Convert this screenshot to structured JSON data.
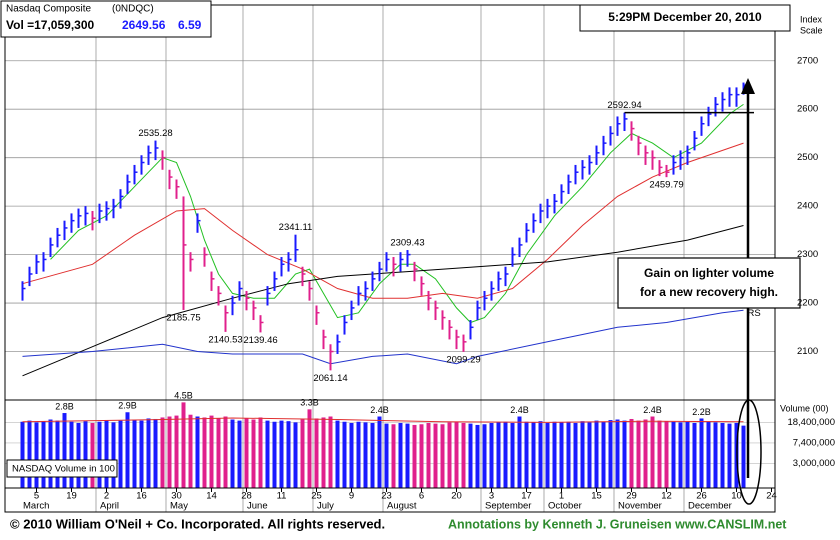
{
  "chart_data": {
    "type": "ohlc",
    "title": "Nasdaq Composite",
    "symbol": "(0NDQC)",
    "volume_text": "Vol =17,059,300",
    "change": 6.59,
    "timestamp": "5:29PM December 20, 2010",
    "scale_label": [
      "Index",
      "Scale"
    ],
    "volume_axis_label": "Volume (00)",
    "volume_panel_label": "NASDAQ Volume in 100",
    "annotation": [
      "Gain on lighter volume",
      "for a new recovery high."
    ],
    "copyright": "© 2010 William O'Neil + Co. Incorporated. All rights reserved.",
    "credit": "Annotations by Kenneth J. Gruneisen www.CANSLIM.net",
    "up_color": "#1a1aff",
    "down_color": "#e0208c",
    "grid": true,
    "xlim": [
      -2.5,
      107.5
    ],
    "xticks": [
      {
        "value": 2,
        "label": "5"
      },
      {
        "value": 7,
        "label": "19"
      },
      {
        "value": 12,
        "label": "2"
      },
      {
        "value": 17,
        "label": "16"
      },
      {
        "value": 22,
        "label": "30"
      },
      {
        "value": 27,
        "label": "14"
      },
      {
        "value": 32,
        "label": "28"
      },
      {
        "value": 37,
        "label": "11"
      },
      {
        "value": 42,
        "label": "25"
      },
      {
        "value": 47,
        "label": "9"
      },
      {
        "value": 52,
        "label": "23"
      },
      {
        "value": 57,
        "label": "6"
      },
      {
        "value": 62,
        "label": "20"
      },
      {
        "value": 67,
        "label": "3"
      },
      {
        "value": 72,
        "label": "17"
      },
      {
        "value": 77,
        "label": "1"
      },
      {
        "value": 82,
        "label": "15"
      },
      {
        "value": 87,
        "label": "29"
      },
      {
        "value": 92,
        "label": "12"
      },
      {
        "value": 97,
        "label": "26"
      },
      {
        "value": 102,
        "label": "10"
      },
      {
        "value": 107,
        "label": "24"
      }
    ],
    "months": [
      {
        "label": "March",
        "start": 0
      },
      {
        "label": "April",
        "start": 11
      },
      {
        "label": "May",
        "start": 21
      },
      {
        "label": "June",
        "start": 32
      },
      {
        "label": "July",
        "start": 42
      },
      {
        "label": "August",
        "start": 52
      },
      {
        "label": "September",
        "start": 66
      },
      {
        "label": "October",
        "start": 75
      },
      {
        "label": "November",
        "start": 85
      },
      {
        "label": "December",
        "start": 95
      }
    ],
    "ylim": [
      2000,
      2815
    ],
    "yticks": [
      2100,
      2200,
      2300,
      2400,
      2500,
      2600,
      2700
    ],
    "close": [
      2230,
      2260,
      2285,
      2290,
      2320,
      2340,
      2355,
      2370,
      2380,
      2385,
      2375,
      2390,
      2395,
      2400,
      2420,
      2450,
      2470,
      2490,
      2510,
      2520,
      2500,
      2460,
      2440,
      2320,
      2290,
      2370,
      2300,
      2250,
      2220,
      2180,
      2200,
      2230,
      2210,
      2190,
      2160,
      2220,
      2250,
      2280,
      2290,
      2310,
      2260,
      2230,
      2180,
      2130,
      2100,
      2120,
      2160,
      2190,
      2220,
      2230,
      2250,
      2270,
      2290,
      2280,
      2290,
      2300,
      2270,
      2240,
      2210,
      2190,
      2170,
      2150,
      2130,
      2120,
      2150,
      2190,
      2210,
      2230,
      2250,
      2260,
      2300,
      2320,
      2350,
      2370,
      2390,
      2400,
      2410,
      2430,
      2450,
      2470,
      2480,
      2490,
      2510,
      2530,
      2550,
      2570,
      2580,
      2560,
      2530,
      2510,
      2500,
      2480,
      2470,
      2490,
      2500,
      2510,
      2540,
      2570,
      2590,
      2610,
      2620,
      2630,
      2630,
      2649.56
    ],
    "high": [
      2245,
      2275,
      2300,
      2305,
      2335,
      2355,
      2370,
      2385,
      2395,
      2400,
      2390,
      2405,
      2410,
      2415,
      2435,
      2465,
      2485,
      2505,
      2525,
      2535.28,
      2515,
      2475,
      2455,
      2420,
      2305,
      2385,
      2315,
      2265,
      2235,
      2195,
      2215,
      2245,
      2225,
      2205,
      2175,
      2235,
      2265,
      2295,
      2305,
      2341.11,
      2275,
      2245,
      2195,
      2145,
      2115,
      2135,
      2175,
      2205,
      2235,
      2245,
      2265,
      2285,
      2305,
      2295,
      2305,
      2309.43,
      2285,
      2255,
      2225,
      2205,
      2185,
      2165,
      2145,
      2135,
      2165,
      2205,
      2225,
      2245,
      2265,
      2275,
      2315,
      2335,
      2365,
      2385,
      2405,
      2415,
      2425,
      2445,
      2465,
      2485,
      2495,
      2505,
      2525,
      2545,
      2565,
      2585,
      2592.94,
      2575,
      2545,
      2525,
      2515,
      2495,
      2485,
      2505,
      2515,
      2525,
      2555,
      2585,
      2605,
      2625,
      2635,
      2645,
      2645,
      2655
    ],
    "low": [
      2205,
      2235,
      2260,
      2265,
      2295,
      2315,
      2330,
      2345,
      2355,
      2360,
      2350,
      2365,
      2370,
      2375,
      2395,
      2425,
      2445,
      2465,
      2485,
      2495,
      2475,
      2435,
      2415,
      2185.75,
      2265,
      2345,
      2275,
      2225,
      2195,
      2140.53,
      2175,
      2205,
      2185,
      2165,
      2139.46,
      2195,
      2225,
      2255,
      2265,
      2285,
      2235,
      2205,
      2155,
      2105,
      2061.14,
      2095,
      2135,
      2165,
      2195,
      2205,
      2225,
      2245,
      2265,
      2255,
      2265,
      2275,
      2245,
      2215,
      2185,
      2165,
      2145,
      2125,
      2105,
      2099.29,
      2125,
      2165,
      2185,
      2205,
      2225,
      2235,
      2275,
      2295,
      2325,
      2345,
      2365,
      2375,
      2385,
      2405,
      2425,
      2445,
      2455,
      2465,
      2485,
      2505,
      2525,
      2545,
      2555,
      2535,
      2505,
      2485,
      2475,
      2462,
      2459.79,
      2465,
      2475,
      2485,
      2515,
      2545,
      2565,
      2585,
      2595,
      2605,
      2605,
      2630
    ],
    "labeled_highs": [
      19,
      39,
      55,
      86
    ],
    "labeled_lows": [
      23,
      29,
      34,
      44,
      63,
      92
    ],
    "lines": [
      {
        "color": "#22c022",
        "x": [
          4,
          8,
          12,
          16,
          20,
          22,
          24,
          26,
          28,
          30,
          33,
          36,
          39,
          41,
          43,
          45,
          48,
          51,
          54,
          56,
          59,
          62,
          64,
          66,
          69,
          72,
          76,
          80,
          84,
          87,
          90,
          93,
          97,
          101,
          103
        ],
        "values": [
          2290,
          2350,
          2380,
          2440,
          2500,
          2490,
          2420,
          2330,
          2260,
          2220,
          2210,
          2210,
          2260,
          2270,
          2220,
          2170,
          2180,
          2240,
          2280,
          2280,
          2250,
          2190,
          2160,
          2170,
          2220,
          2300,
          2380,
          2440,
          2510,
          2550,
          2530,
          2500,
          2530,
          2590,
          2610
        ]
      },
      {
        "color": "#e03030",
        "x": [
          0,
          10,
          16,
          22,
          26,
          30,
          35,
          40,
          45,
          50,
          55,
          60,
          65,
          70,
          75,
          80,
          85,
          90,
          95,
          103
        ],
        "values": [
          2240,
          2280,
          2340,
          2390,
          2395,
          2350,
          2300,
          2270,
          2230,
          2210,
          2210,
          2220,
          2210,
          2230,
          2290,
          2360,
          2420,
          2460,
          2490,
          2530
        ]
      },
      {
        "color": "#000000",
        "x": [
          0,
          10,
          20,
          30,
          38,
          45,
          55,
          65,
          75,
          85,
          95,
          103
        ],
        "values": [
          2050,
          2110,
          2170,
          2210,
          2240,
          2255,
          2265,
          2275,
          2285,
          2305,
          2330,
          2360
        ]
      },
      {
        "color": "#2233cc",
        "label": "RS",
        "x": [
          0,
          10,
          20,
          25,
          30,
          40,
          44,
          50,
          55,
          62,
          65,
          75,
          85,
          92,
          100,
          103
        ],
        "values": [
          2090,
          2100,
          2115,
          2100,
          2095,
          2095,
          2075,
          2090,
          2095,
          2075,
          2090,
          2120,
          2150,
          2160,
          2180,
          2185
        ]
      }
    ],
    "vlog": true,
    "vlim": [
      1000000,
      50000000
    ],
    "vticks": [
      {
        "value": 18400000,
        "label": "18,400,000"
      },
      {
        "value": 7400000,
        "label": "7,400,000"
      },
      {
        "value": 3000000,
        "label": "3,000,000"
      }
    ],
    "volume": [
      19000000,
      20000000,
      18500000,
      19500000,
      21000000,
      20000000,
      28000000,
      19000000,
      18000000,
      19500000,
      18000000,
      19000000,
      20500000,
      18500000,
      20000000,
      29000000,
      21000000,
      20000000,
      22000000,
      21500000,
      23000000,
      24000000,
      25000000,
      45000000,
      26000000,
      24000000,
      23000000,
      25000000,
      22000000,
      24000000,
      21000000,
      20000000,
      22000000,
      21000000,
      23000000,
      20000000,
      19000000,
      20000000,
      19500000,
      18500000,
      21000000,
      33000000,
      22000000,
      23000000,
      24000000,
      20000000,
      19000000,
      18000000,
      19000000,
      18500000,
      18000000,
      24000000,
      17500000,
      17000000,
      18000000,
      17500000,
      16500000,
      17000000,
      18000000,
      17500000,
      17000000,
      18500000,
      19000000,
      18000000,
      17500000,
      16500000,
      17000000,
      18000000,
      18500000,
      19000000,
      18000000,
      24000000,
      19000000,
      18500000,
      19500000,
      18000000,
      19000000,
      18500000,
      19000000,
      18000000,
      19500000,
      18500000,
      20000000,
      19000000,
      20500000,
      21000000,
      20000000,
      21500000,
      20000000,
      21000000,
      24000000,
      20000000,
      19500000,
      19000000,
      18500000,
      19000000,
      18000000,
      22000000,
      19000000,
      18500000,
      18000000,
      17500000,
      18000000,
      16000000
    ],
    "volume_labels": [
      null,
      null,
      null,
      null,
      null,
      null,
      "2.8B",
      null,
      null,
      null,
      null,
      null,
      null,
      null,
      null,
      "2.9B",
      null,
      null,
      null,
      null,
      null,
      null,
      null,
      "4.5B",
      null,
      null,
      null,
      null,
      null,
      null,
      null,
      null,
      null,
      null,
      null,
      null,
      null,
      null,
      null,
      null,
      null,
      "3.3B",
      null,
      null,
      null,
      null,
      null,
      null,
      null,
      null,
      null,
      "2.4B",
      null,
      null,
      null,
      null,
      null,
      null,
      null,
      null,
      null,
      null,
      null,
      null,
      null,
      null,
      null,
      null,
      null,
      null,
      null,
      "2.4B",
      null,
      null,
      null,
      null,
      null,
      null,
      null,
      null,
      null,
      null,
      null,
      null,
      null,
      null,
      null,
      null,
      null,
      null,
      "2.4B",
      null,
      null,
      null,
      null,
      null,
      null,
      "2.2B",
      null,
      null,
      null,
      null,
      null,
      null
    ],
    "volume_avg": {
      "color": "#e03030",
      "x": [
        0,
        20,
        30,
        45,
        60,
        75,
        90,
        103
      ],
      "values": [
        19000000,
        21000000,
        22500000,
        21000000,
        19000000,
        18500000,
        19500000,
        19000000
      ]
    }
  }
}
